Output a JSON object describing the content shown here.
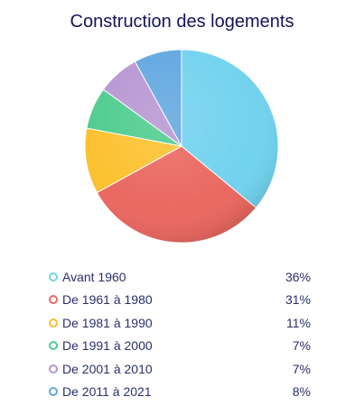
{
  "chart_data": {
    "type": "pie",
    "title": "Construction des logements",
    "legend_position": "bottom",
    "slices": [
      {
        "label": "Avant 1960",
        "value": 36,
        "value_label": "36%",
        "color": "#72d2ee"
      },
      {
        "label": "De 1961 à 1980",
        "value": 31,
        "value_label": "31%",
        "color": "#ea6961"
      },
      {
        "label": "De 1981 à 1990",
        "value": 11,
        "value_label": "11%",
        "color": "#fcc12f"
      },
      {
        "label": "De 1991 à 2000",
        "value": 7,
        "value_label": "7%",
        "color": "#4ecc8e"
      },
      {
        "label": "De 2001 à 2010",
        "value": 7,
        "value_label": "7%",
        "color": "#b796d3"
      },
      {
        "label": "De 2011 à 2021",
        "value": 8,
        "value_label": "8%",
        "color": "#62a7e0"
      }
    ]
  }
}
